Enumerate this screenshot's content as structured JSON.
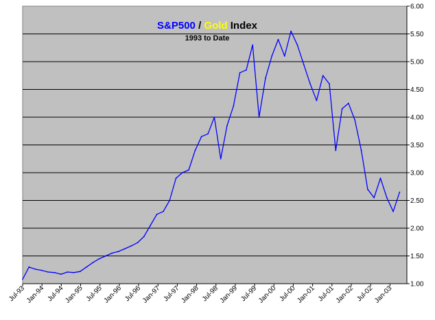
{
  "chart_data": {
    "type": "line",
    "title_parts": [
      {
        "text": "S&P500",
        "color": "#0000ff"
      },
      {
        "text": " / ",
        "color": "#000000"
      },
      {
        "text": "Gold",
        "color": "#ffff00"
      },
      {
        "text": " Index",
        "color": "#000000"
      }
    ],
    "subtitle": "1993 to Date",
    "xlabel": "",
    "ylabel": "",
    "ylim": [
      1.0,
      6.0
    ],
    "y_ticks": [
      "1.00",
      "1.50",
      "2.00",
      "2.50",
      "3.00",
      "3.50",
      "4.00",
      "4.50",
      "5.00",
      "5.50",
      "6.00"
    ],
    "x_ticks": [
      "Jul-93",
      "Jan-94",
      "Jul-94",
      "Jan-95",
      "Jul-95",
      "Jan-96",
      "Jul-96",
      "Jan-97",
      "Jul-97",
      "Jan-98",
      "Jul-98",
      "Jan-99",
      "Jul-99",
      "Jan-00",
      "Jul-00",
      "Jan-01",
      "Jul-01",
      "Jan-02",
      "Jul-02",
      "Jan-03"
    ],
    "y_axis_position": "right",
    "grid": true,
    "plot_background": "#c0c0c0",
    "line_color": "#0000ff",
    "series": [
      {
        "x": [
          "Jul-93",
          "Sep-93",
          "Nov-93",
          "Jan-94",
          "Mar-94",
          "May-94",
          "Jul-94",
          "Sep-94",
          "Nov-94",
          "Jan-95",
          "Mar-95",
          "May-95",
          "Jul-95",
          "Sep-95",
          "Nov-95",
          "Jan-96",
          "Mar-96",
          "May-96",
          "Jul-96",
          "Sep-96",
          "Nov-96",
          "Jan-97",
          "Mar-97",
          "May-97",
          "Jul-97",
          "Sep-97",
          "Nov-97",
          "Jan-98",
          "Mar-98",
          "May-98",
          "Jul-98",
          "Sep-98",
          "Nov-98",
          "Jan-99",
          "Mar-99",
          "May-99",
          "Jul-99",
          "Sep-99",
          "Nov-99",
          "Jan-00",
          "Mar-00",
          "May-00",
          "Jul-00",
          "Sep-00",
          "Nov-00",
          "Jan-01",
          "Mar-01",
          "May-01",
          "Jul-01",
          "Sep-01",
          "Nov-01",
          "Jan-02",
          "Mar-02",
          "May-02",
          "Jul-02",
          "Sep-02",
          "Nov-02",
          "Jan-03",
          "Mar-03",
          "Apr-03"
        ],
        "values": [
          1.08,
          1.3,
          1.26,
          1.24,
          1.21,
          1.2,
          1.17,
          1.21,
          1.2,
          1.22,
          1.3,
          1.38,
          1.45,
          1.5,
          1.55,
          1.58,
          1.63,
          1.68,
          1.74,
          1.85,
          2.05,
          2.25,
          2.3,
          2.5,
          2.9,
          3.0,
          3.05,
          3.4,
          3.65,
          3.7,
          4.0,
          3.25,
          3.85,
          4.2,
          4.8,
          4.85,
          5.3,
          4.0,
          4.7,
          5.1,
          5.4,
          5.1,
          5.55,
          5.3,
          4.95,
          4.6,
          4.3,
          4.75,
          4.6,
          3.4,
          4.15,
          4.25,
          3.95,
          3.4,
          2.7,
          2.55,
          2.9,
          2.55,
          2.3,
          2.65
        ]
      }
    ]
  }
}
